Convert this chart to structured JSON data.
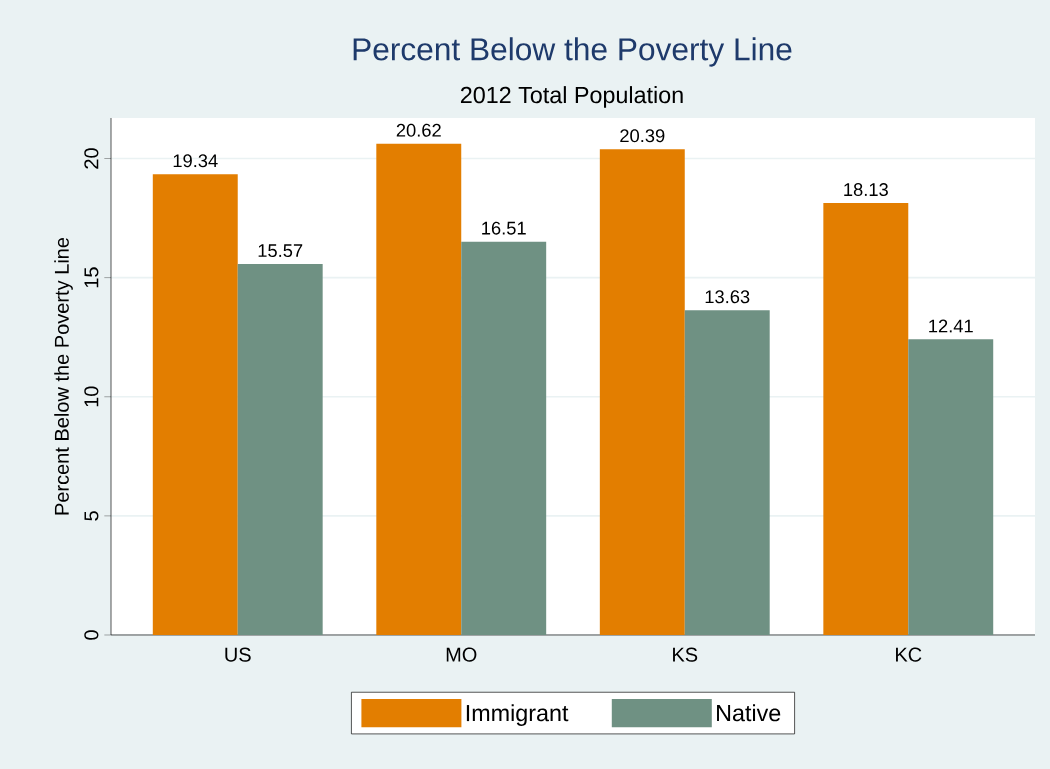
{
  "chart_data": {
    "type": "bar",
    "title": "Percent Below the Poverty Line",
    "subtitle": "2012 Total Population",
    "ylabel": "Percent Below the Poverty Line",
    "categories": [
      "US",
      "MO",
      "KS",
      "KC"
    ],
    "series": [
      {
        "name": "Immigrant",
        "color": "#e37e00",
        "values": [
          19.34,
          20.62,
          20.39,
          18.13
        ]
      },
      {
        "name": "Native",
        "color": "#6f9183",
        "values": [
          15.57,
          16.51,
          13.63,
          12.41
        ]
      }
    ],
    "ylim": [
      0,
      21.7
    ],
    "yticks": [
      0,
      5,
      10,
      15,
      20
    ],
    "grid": "y",
    "legend": "bottom",
    "data_labels": true
  }
}
